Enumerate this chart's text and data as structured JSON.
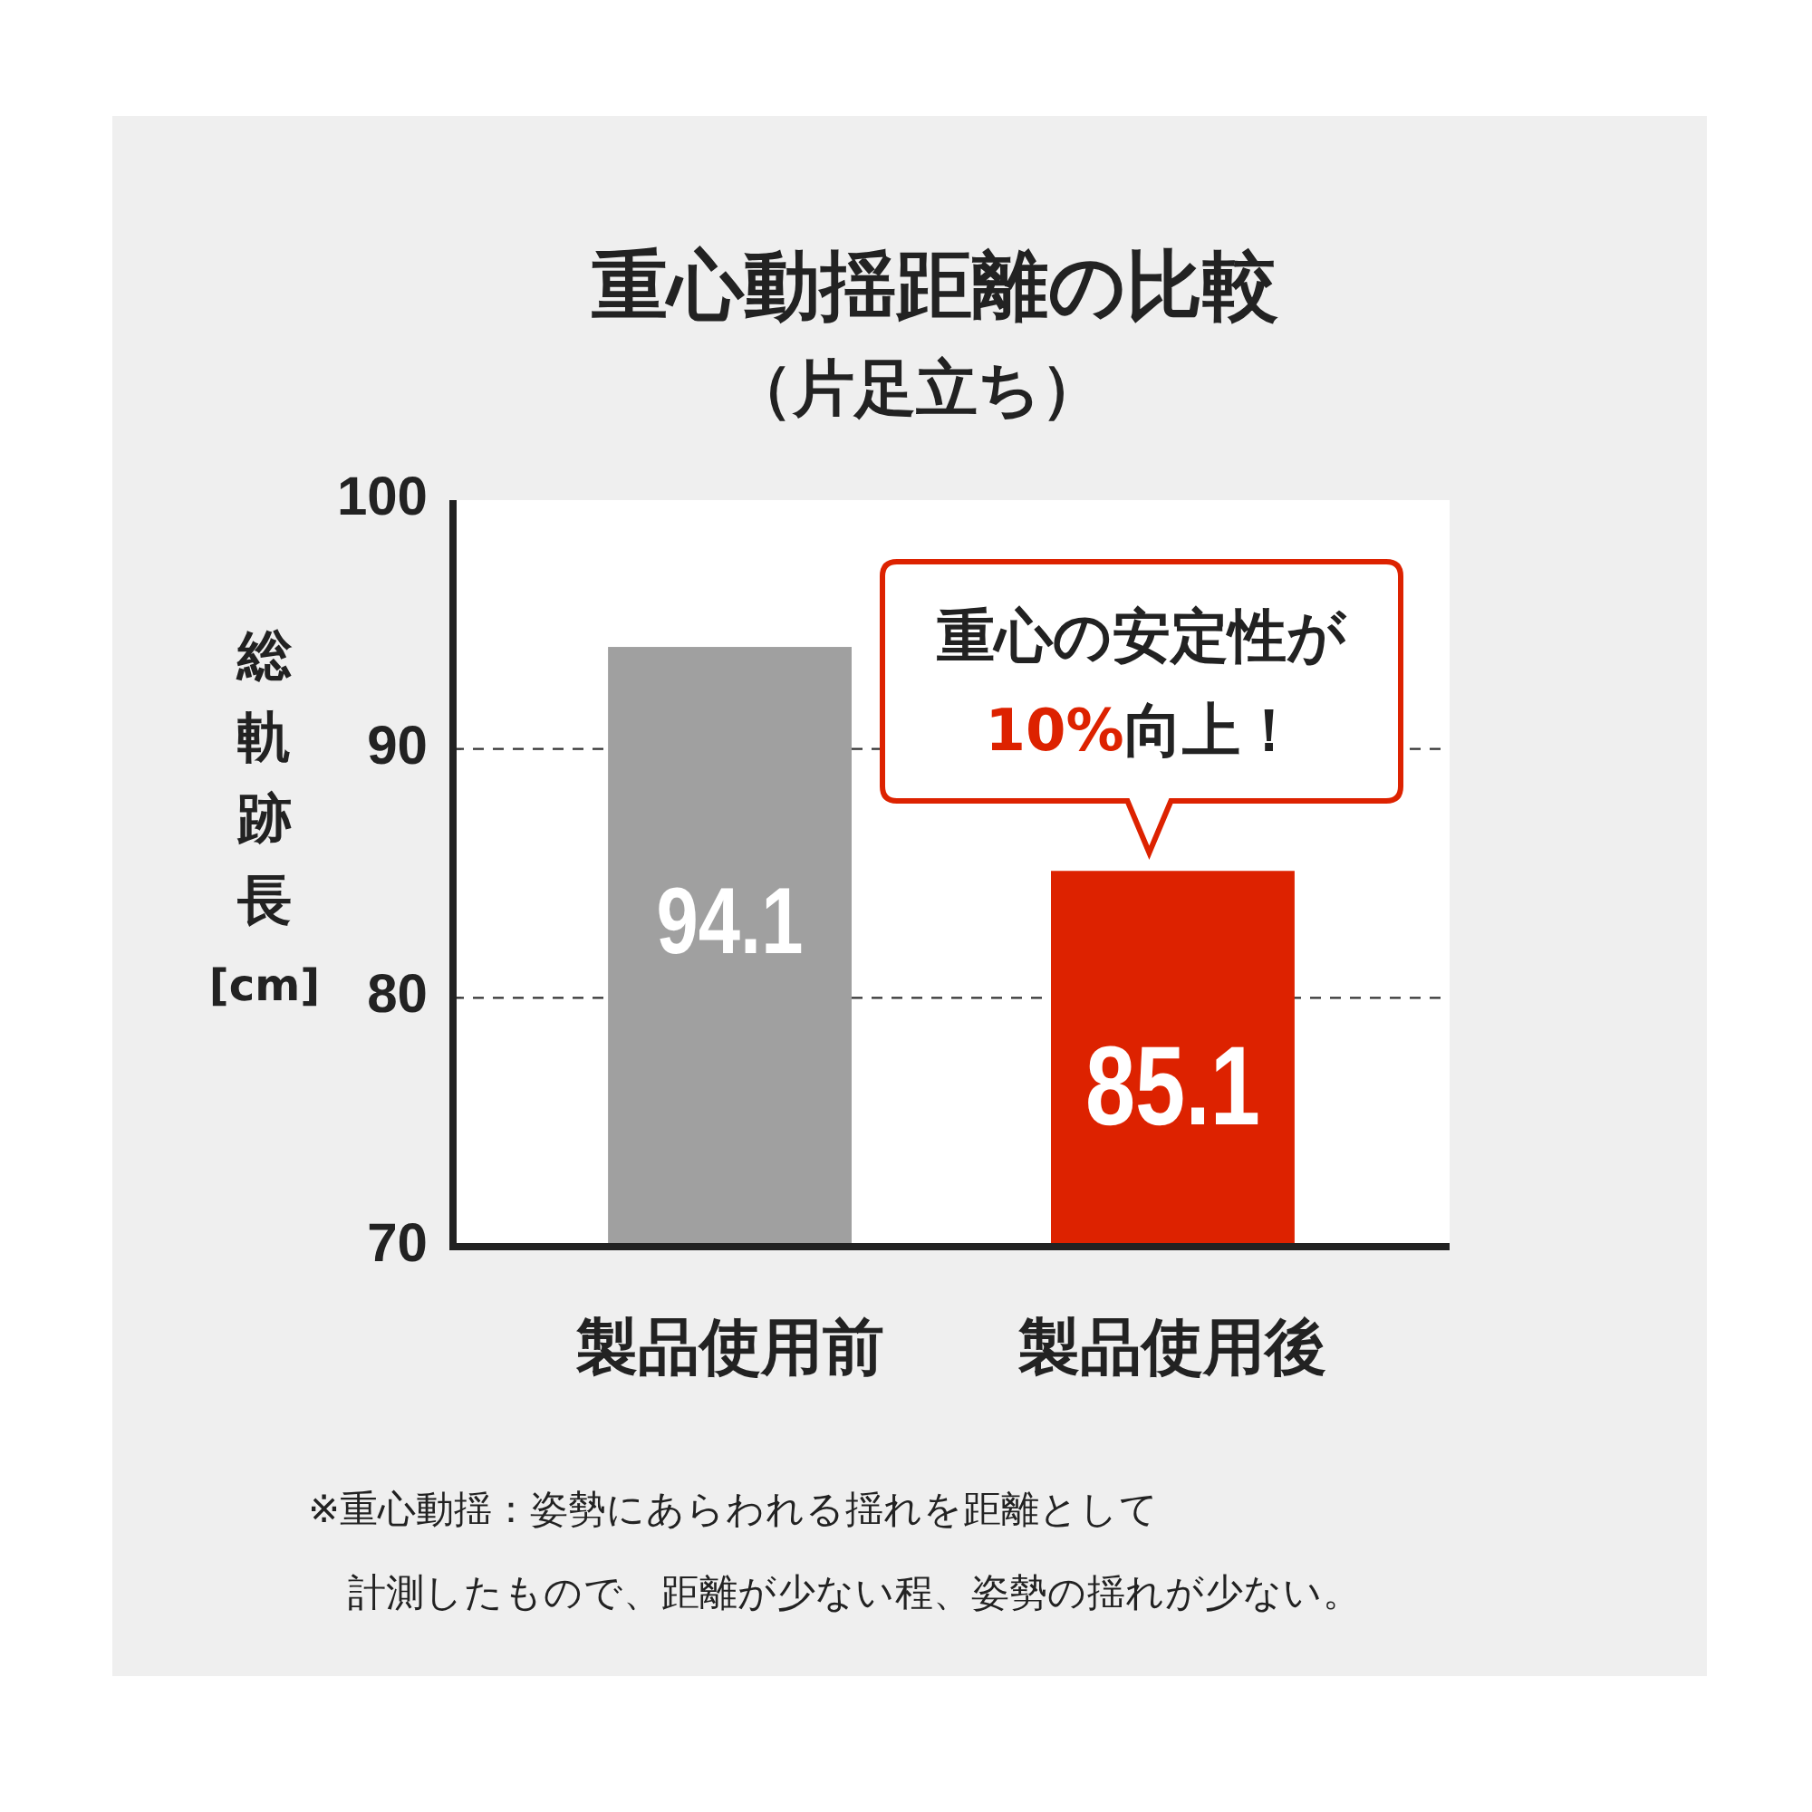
{
  "chart_data": {
    "type": "bar",
    "title": "重心動揺距離の比較",
    "subtitle": "（片足立ち）",
    "ylabel": "総軌跡長[cm]",
    "categories": [
      "製品使用前",
      "製品使用後"
    ],
    "values": [
      94.1,
      85.1
    ],
    "colors": [
      "#a0a0a0",
      "#dd2200"
    ],
    "ylim": [
      70,
      100
    ],
    "yticks": [
      70,
      80,
      90,
      100
    ],
    "grid": "y",
    "data_labels": true,
    "annotations": [
      {
        "text": "重心の安定性が\n10%向上！",
        "x": "製品使用後",
        "y": 85.1
      },
      "※重心動揺：姿勢にあらわれる揺れを距離として計測したもので、距離が少ない程、姿勢の揺れが少ない。"
    ]
  }
}
